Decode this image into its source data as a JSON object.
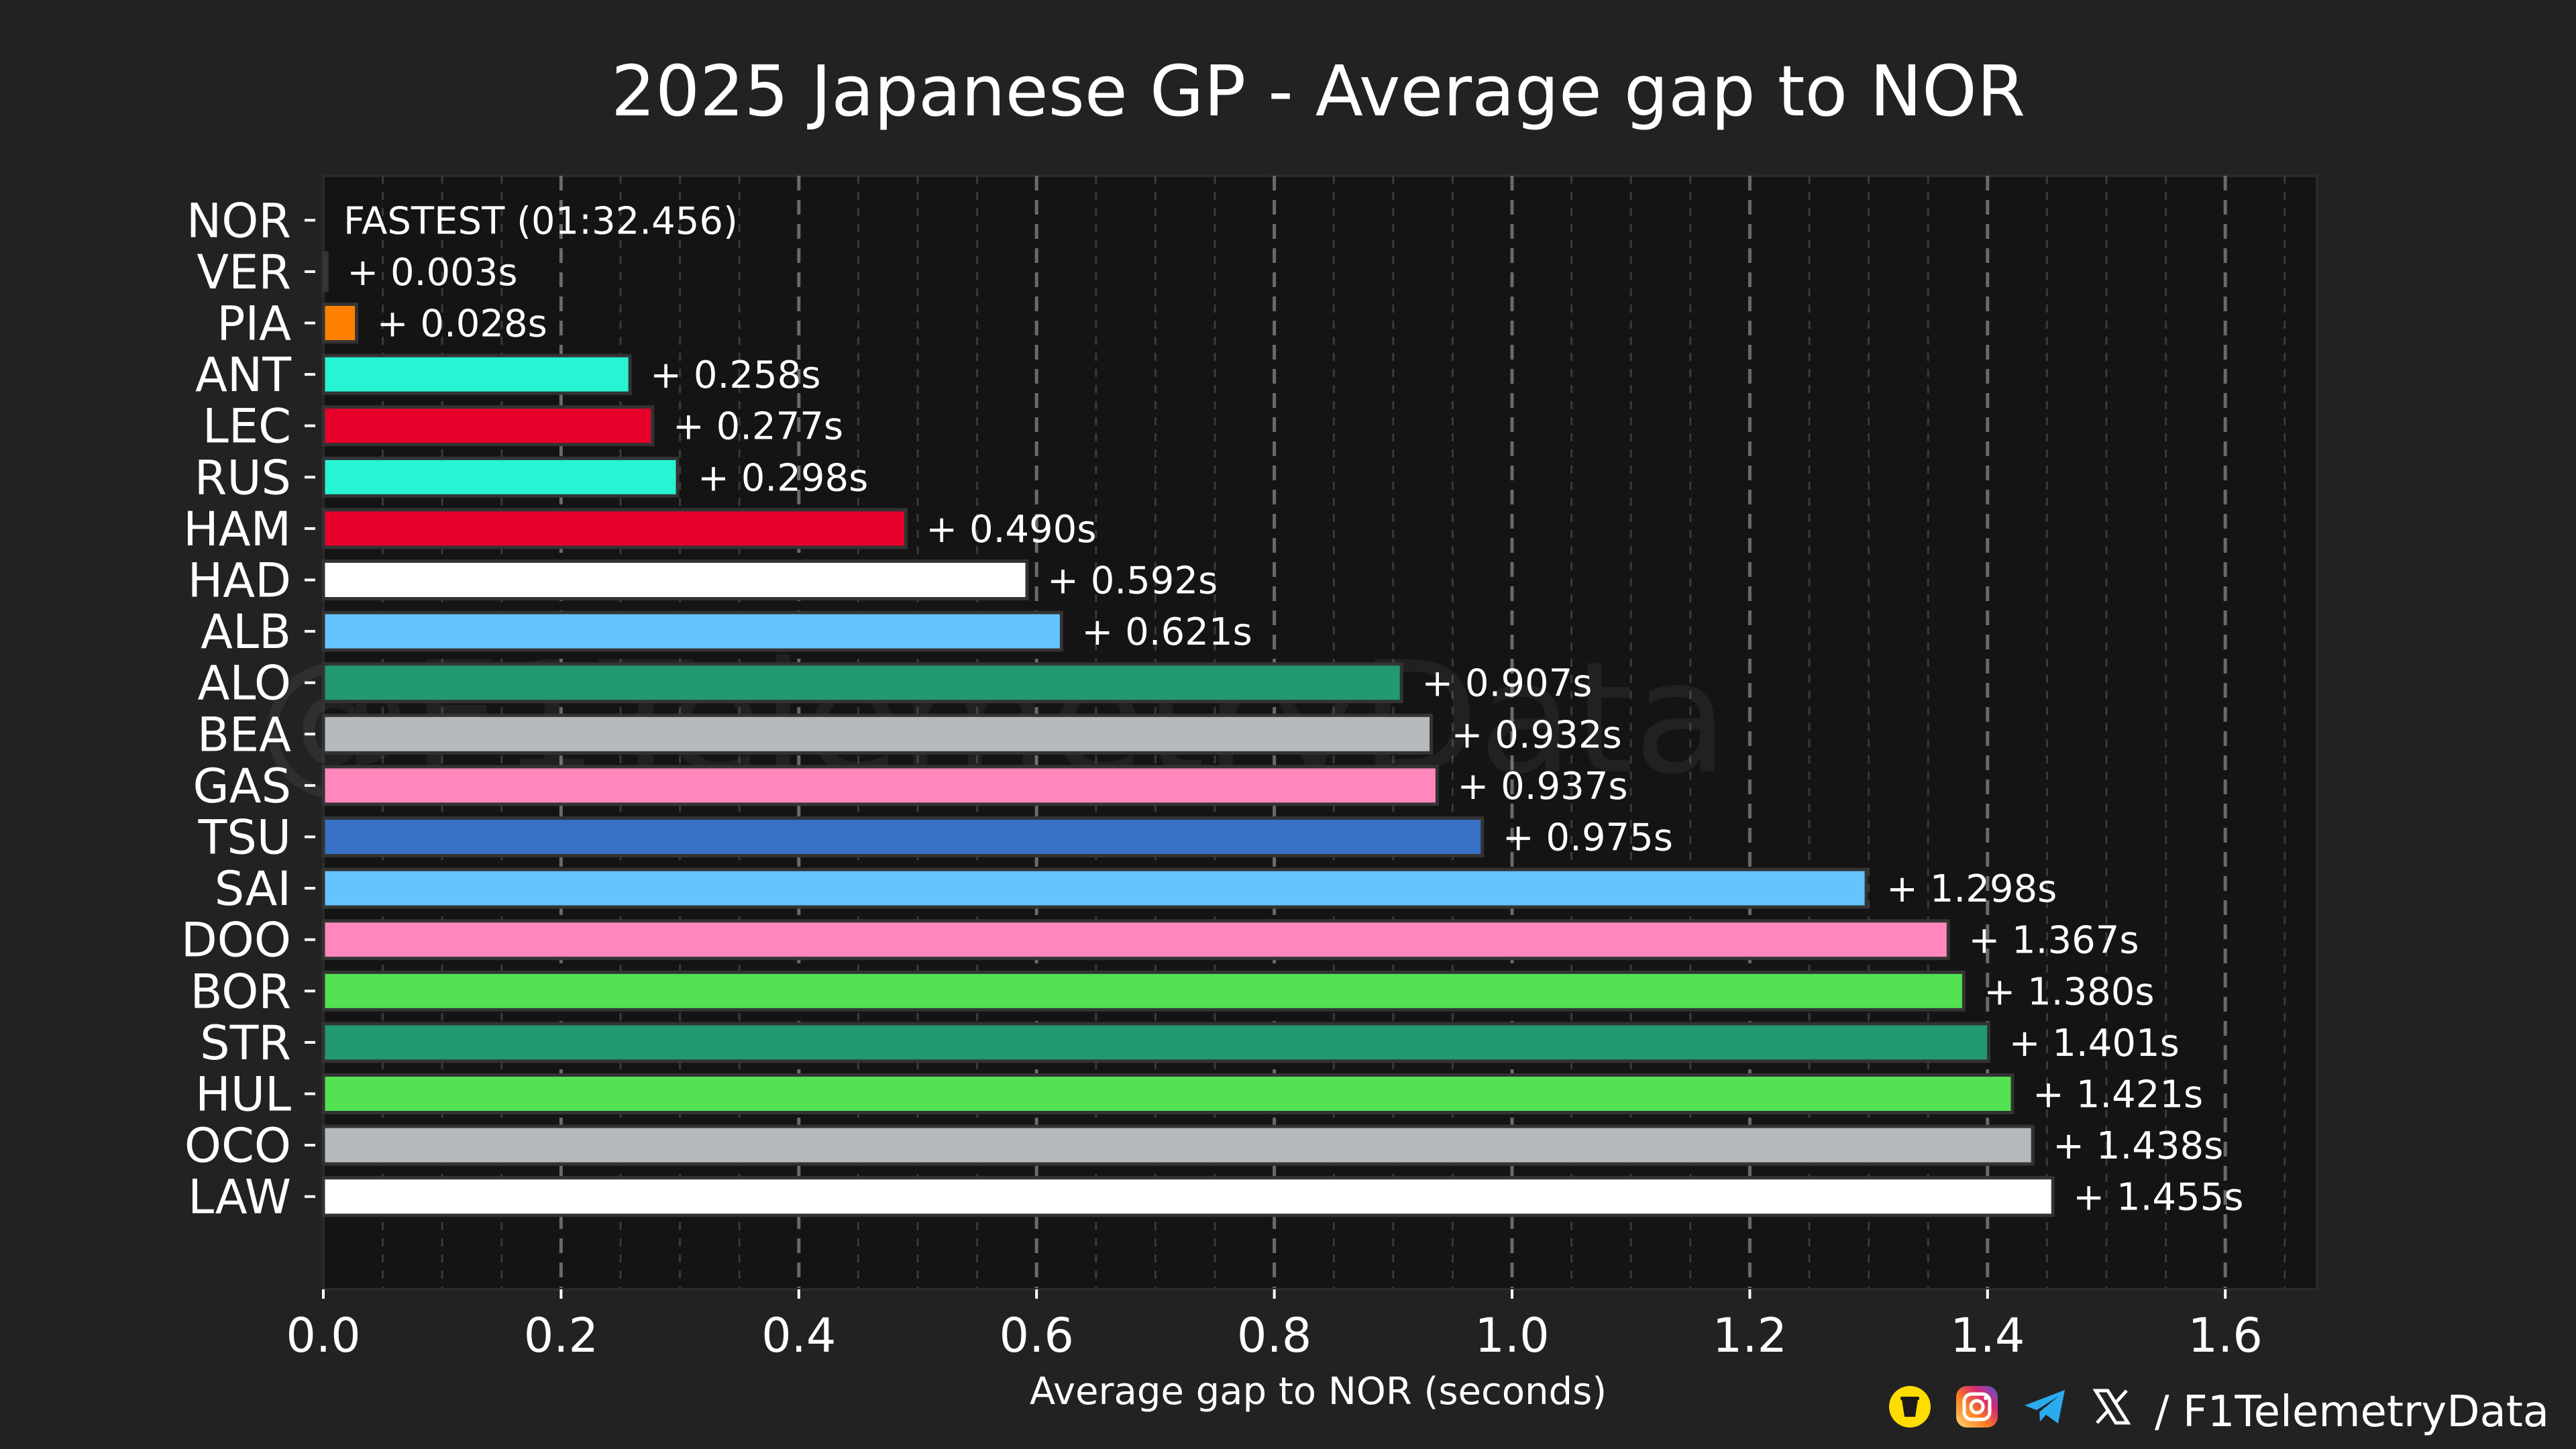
{
  "chart_data": {
    "type": "bar",
    "orientation": "horizontal",
    "title": "2025 Japanese GP - Average gap to NOR",
    "xlabel": "Average gap to NOR (seconds)",
    "ylabel": "",
    "xlim": [
      0,
      1.68
    ],
    "xticks": [
      "0.0",
      "0.2",
      "0.4",
      "0.6",
      "0.8",
      "1.0",
      "1.2",
      "1.4",
      "1.6"
    ],
    "grid": "vertical dashed",
    "watermark": "@F1TelemetryData",
    "bars": [
      {
        "driver": "NOR",
        "value": 0.0,
        "label": "FASTEST (01:32.456)",
        "color": "#FF8000"
      },
      {
        "driver": "VER",
        "value": 0.003,
        "label": "+ 0.003s",
        "color": "#3671C6"
      },
      {
        "driver": "PIA",
        "value": 0.028,
        "label": "+ 0.028s",
        "color": "#FF8000"
      },
      {
        "driver": "ANT",
        "value": 0.258,
        "label": "+ 0.258s",
        "color": "#27F4D2"
      },
      {
        "driver": "LEC",
        "value": 0.277,
        "label": "+ 0.277s",
        "color": "#E8002D"
      },
      {
        "driver": "RUS",
        "value": 0.298,
        "label": "+ 0.298s",
        "color": "#27F4D2"
      },
      {
        "driver": "HAM",
        "value": 0.49,
        "label": "+ 0.490s",
        "color": "#E8002D"
      },
      {
        "driver": "HAD",
        "value": 0.592,
        "label": "+ 0.592s",
        "color": "#FFFFFF"
      },
      {
        "driver": "ALB",
        "value": 0.621,
        "label": "+ 0.621s",
        "color": "#64C4FF"
      },
      {
        "driver": "ALO",
        "value": 0.907,
        "label": "+ 0.907s",
        "color": "#229971"
      },
      {
        "driver": "BEA",
        "value": 0.932,
        "label": "+ 0.932s",
        "color": "#B6BABD"
      },
      {
        "driver": "GAS",
        "value": 0.937,
        "label": "+ 0.937s",
        "color": "#FF87BC"
      },
      {
        "driver": "TSU",
        "value": 0.975,
        "label": "+ 0.975s",
        "color": "#3671C6"
      },
      {
        "driver": "SAI",
        "value": 1.298,
        "label": "+ 1.298s",
        "color": "#64C4FF"
      },
      {
        "driver": "DOO",
        "value": 1.367,
        "label": "+ 1.367s",
        "color": "#FF87BC"
      },
      {
        "driver": "BOR",
        "value": 1.38,
        "label": "+ 1.380s",
        "color": "#52E252"
      },
      {
        "driver": "STR",
        "value": 1.401,
        "label": "+ 1.401s",
        "color": "#229971"
      },
      {
        "driver": "HUL",
        "value": 1.421,
        "label": "+ 1.421s",
        "color": "#52E252"
      },
      {
        "driver": "OCO",
        "value": 1.438,
        "label": "+ 1.438s",
        "color": "#B6BABD"
      },
      {
        "driver": "LAW",
        "value": 1.455,
        "label": "+ 1.455s",
        "color": "#FFFFFF"
      }
    ]
  },
  "footer": {
    "handle": "/ F1TelemetryData",
    "icons": [
      "buymeacoffee-icon",
      "instagram-icon",
      "telegram-icon",
      "x-icon"
    ]
  },
  "colors": {
    "background": "#222222",
    "plot_background": "#141414",
    "grid": "#666666",
    "text": "#ffffff"
  }
}
